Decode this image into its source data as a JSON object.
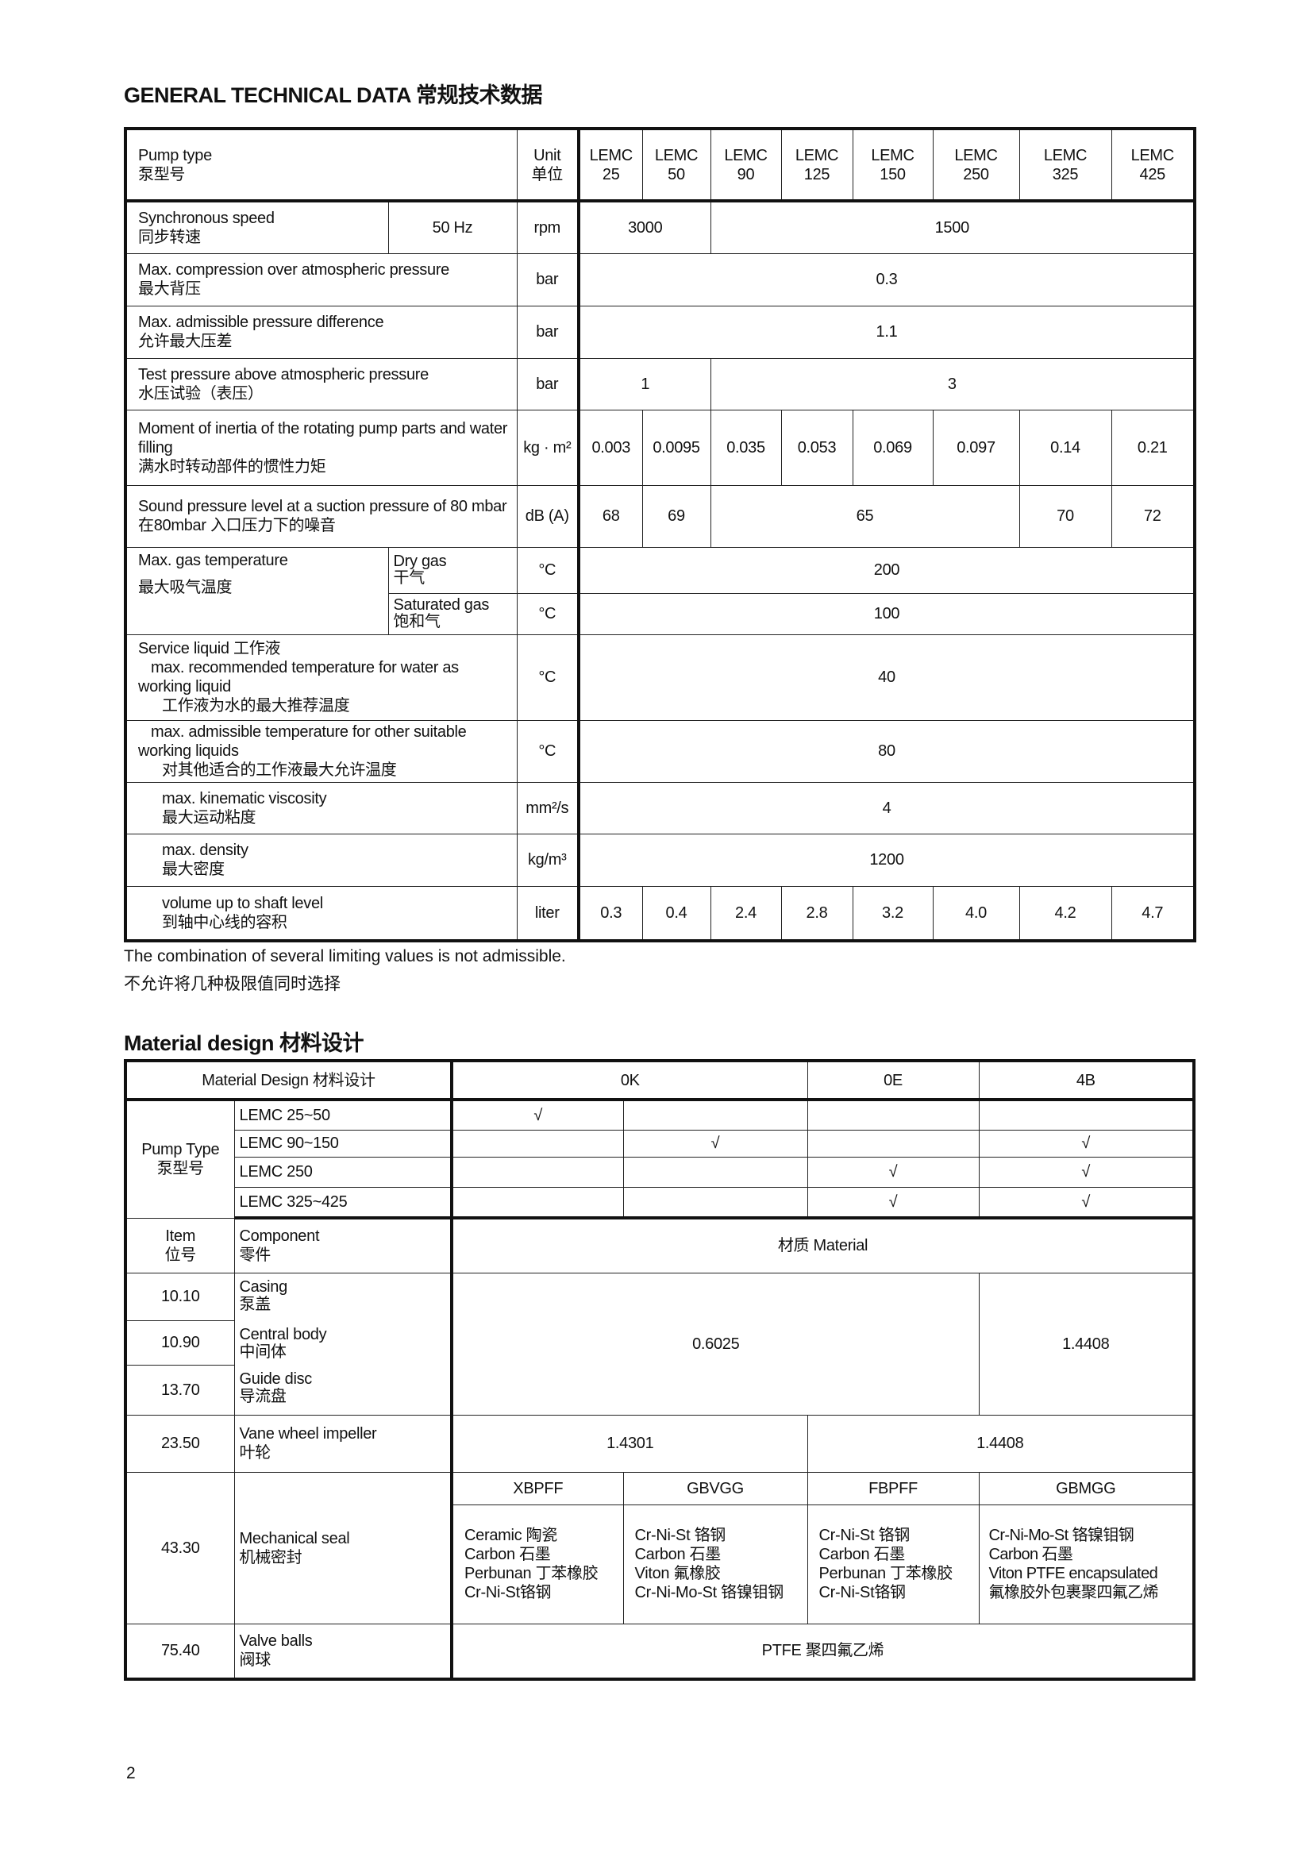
{
  "general": {
    "title": "GENERAL TECHNICAL DATA 常规技术数据",
    "header": {
      "pump_type_en": "Pump type",
      "pump_type_cn": "泵型号",
      "unit_en": "Unit",
      "unit_cn": "单位",
      "models": [
        {
          "a": "LEMC",
          "b": "25"
        },
        {
          "a": "LEMC",
          "b": "50"
        },
        {
          "a": "LEMC",
          "b": "90"
        },
        {
          "a": "LEMC",
          "b": "125"
        },
        {
          "a": "LEMC",
          "b": "150"
        },
        {
          "a": "LEMC",
          "b": "250"
        },
        {
          "a": "LEMC",
          "b": "325"
        },
        {
          "a": "LEMC",
          "b": "425"
        }
      ]
    },
    "speed": {
      "en": "Synchronous speed",
      "cn": "同步转速",
      "freq": "50 Hz",
      "unit": "rpm",
      "v1": "3000",
      "v2": "1500"
    },
    "compression": {
      "en": "Max. compression over atmospheric pressure",
      "cn": "最大背压",
      "unit": "bar",
      "value": "0.3"
    },
    "pressure_diff": {
      "en": "Max. admissible pressure difference",
      "cn": "允许最大压差",
      "unit": "bar",
      "value": "1.1"
    },
    "test_pressure": {
      "en": "Test pressure above atmospheric pressure",
      "cn": "水压试验（表压）",
      "unit": "bar",
      "v1": "1",
      "v2": "3"
    },
    "inertia": {
      "en": "Moment of inertia of the rotating pump parts and water filling",
      "cn": "满水时转动部件的惯性力矩",
      "unit": "kg · m²",
      "values": [
        "0.003",
        "0.0095",
        "0.035",
        "0.053",
        "0.069",
        "0.097",
        "0.14",
        "0.21"
      ]
    },
    "sound": {
      "en": "Sound pressure level at a suction pressure of 80 mbar",
      "cn": "在80mbar 入口压力下的噪音",
      "unit": "dB (A)",
      "v1": "68",
      "v2": "69",
      "v3": "65",
      "v4": "70",
      "v5": "72"
    },
    "gas_temp": {
      "en": "Max. gas temperature",
      "cn": "最大吸气温度",
      "dry_en": "Dry gas",
      "dry_cn": "干气",
      "dry_unit": "°C",
      "dry_value": "200",
      "sat_en": "Saturated gas",
      "sat_cn": "饱和气",
      "sat_unit": "°C",
      "sat_value": "100"
    },
    "service": {
      "title": "Service liquid  工作液",
      "rec_en": "max. recommended temperature for water as working liquid",
      "rec_cn": "工作液为水的最大推荐温度",
      "rec_unit": "°C",
      "rec_value": "40",
      "adm_en": "max. admissible temperature for other suitable working liquids",
      "adm_cn": "对其他适合的工作液最大允许温度",
      "adm_unit": "°C",
      "adm_value": "80",
      "visc_en": "max. kinematic viscosity",
      "visc_cn": "最大运动粘度",
      "visc_unit": "mm²/s",
      "visc_value": "4",
      "dens_en": "max. density",
      "dens_cn": "最大密度",
      "dens_unit": "kg/m³",
      "dens_value": "1200",
      "vol_en": "volume up to shaft level",
      "vol_cn": "到轴中心线的容积",
      "vol_unit": "liter",
      "vol_values": [
        "0.3",
        "0.4",
        "2.4",
        "2.8",
        "3.2",
        "4.0",
        "4.2",
        "4.7"
      ]
    },
    "note_en": "The combination of several limiting values is not admissible.",
    "note_cn": "不允许将几种极限值同时选择"
  },
  "material": {
    "title": "Material design 材料设计",
    "header": {
      "label": "Material Design  材料设计",
      "d1": "0K",
      "d2": "0E",
      "d3": "4B"
    },
    "pump_type": {
      "en": "Pump Type",
      "cn": "泵型号",
      "rows": [
        "LEMC 25~50",
        "LEMC 90~150",
        "LEMC 250",
        "LEMC 325~425"
      ]
    },
    "check": "√",
    "item_en": "Item",
    "item_cn": "位号",
    "comp_en": "Component",
    "comp_cn": "零件",
    "mat_header": "材质 Material",
    "parts": [
      {
        "item": "10.10",
        "en": "Casing",
        "cn": "泵盖"
      },
      {
        "item": "10.90",
        "en": "Central body",
        "cn": "中间体"
      },
      {
        "item": "13.70",
        "en": "Guide disc",
        "cn": "导流盘"
      }
    ],
    "parts_v1": "0.6025",
    "parts_v2": "1.4408",
    "impeller": {
      "item": "23.50",
      "en": "Vane wheel impeller",
      "cn": "叶轮",
      "v1": "1.4301",
      "v2": "1.4408"
    },
    "seal": {
      "item": "43.30",
      "en": "Mechanical seal",
      "cn": "机械密封",
      "codes": [
        "XBPFF",
        "GBVGG",
        "FBPFF",
        "GBMGG"
      ],
      "materials": [
        [
          "Ceramic  陶瓷",
          "Carbon  石墨",
          "Perbunan  丁苯橡胶",
          "Cr-Ni-St铬钢"
        ],
        [
          "Cr-Ni-St  铬钢",
          "Carbon  石墨",
          "Viton  氟橡胶",
          "Cr-Ni-Mo-St 铬镍钼钢"
        ],
        [
          "Cr-Ni-St  铬钢",
          "Carbon  石墨",
          "Perbunan  丁苯橡胶",
          "Cr-Ni-St铬钢"
        ],
        [
          "Cr-Ni-Mo-St  铬镍钼钢",
          "Carbon  石墨",
          "Viton PTFE encapsulated",
          "氟橡胶外包裹聚四氟乙烯"
        ]
      ]
    },
    "balls": {
      "item": "75.40",
      "en": "Valve balls",
      "cn": "阀球",
      "value": "PTFE 聚四氟乙烯"
    }
  },
  "page_number": "2"
}
